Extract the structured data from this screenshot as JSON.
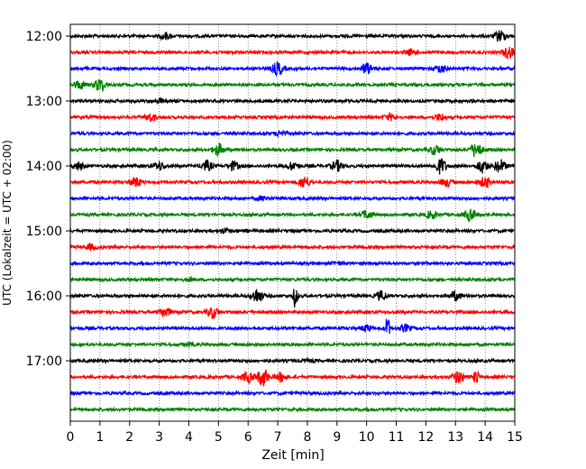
{
  "chart_data": {
    "type": "line",
    "title": "",
    "xlabel": "Zeit  [min]",
    "ylabel": "UTC (Lokalzeit = UTC + 02:00)",
    "xlim": [
      0,
      15
    ],
    "x_ticks": [
      "0",
      "1",
      "2",
      "3",
      "4",
      "5",
      "6",
      "7",
      "8",
      "9",
      "10",
      "11",
      "12",
      "13",
      "14",
      "15"
    ],
    "y_ticks": [
      {
        "label": "12:00",
        "trace_index": 0
      },
      {
        "label": "13:00",
        "trace_index": 4
      },
      {
        "label": "14:00",
        "trace_index": 8
      },
      {
        "label": "15:00",
        "trace_index": 12
      },
      {
        "label": "16:00",
        "trace_index": 16
      },
      {
        "label": "17:00",
        "trace_index": 20
      }
    ],
    "vertical_grid": true,
    "trace_interval_minutes": 15,
    "colors": [
      "#000000",
      "#ff0000",
      "#0000ff",
      "#008000"
    ],
    "traces": [
      {
        "start": "12:00",
        "color": "#000000",
        "events": [
          {
            "t": 3.2,
            "amp": 0.25
          },
          {
            "t": 14.5,
            "amp": 0.45
          }
        ]
      },
      {
        "start": "12:15",
        "color": "#ff0000",
        "events": [
          {
            "t": 14.8,
            "amp": 0.45
          },
          {
            "t": 11.5,
            "amp": 0.2
          }
        ]
      },
      {
        "start": "12:30",
        "color": "#0000ff",
        "events": [
          {
            "t": 7.0,
            "amp": 0.5
          },
          {
            "t": 10.0,
            "amp": 0.4
          },
          {
            "t": 12.5,
            "amp": 0.3
          }
        ]
      },
      {
        "start": "12:45",
        "color": "#008000",
        "events": [
          {
            "t": 1.0,
            "amp": 0.5
          },
          {
            "t": 0.3,
            "amp": 0.3
          }
        ]
      },
      {
        "start": "13:00",
        "color": "#000000",
        "events": [
          {
            "t": 3.0,
            "amp": 0.15
          }
        ]
      },
      {
        "start": "13:15",
        "color": "#ff0000",
        "events": [
          {
            "t": 2.7,
            "amp": 0.3
          },
          {
            "t": 10.8,
            "amp": 0.25
          },
          {
            "t": 12.5,
            "amp": 0.25
          }
        ]
      },
      {
        "start": "13:30",
        "color": "#0000ff",
        "events": [
          {
            "t": 7.1,
            "amp": 0.2
          }
        ]
      },
      {
        "start": "13:45",
        "color": "#008000",
        "events": [
          {
            "t": 5.0,
            "amp": 0.45
          },
          {
            "t": 13.7,
            "amp": 0.6
          },
          {
            "t": 12.3,
            "amp": 0.35
          }
        ]
      },
      {
        "start": "14:00",
        "color": "#000000",
        "events": [
          {
            "t": 0.3,
            "amp": 0.3
          },
          {
            "t": 3.0,
            "amp": 0.3
          },
          {
            "t": 4.6,
            "amp": 0.4
          },
          {
            "t": 5.5,
            "amp": 0.35
          },
          {
            "t": 7.5,
            "amp": 0.3
          },
          {
            "t": 9.0,
            "amp": 0.4
          },
          {
            "t": 12.5,
            "amp": 0.6
          },
          {
            "t": 13.9,
            "amp": 0.5
          },
          {
            "t": 14.5,
            "amp": 0.5
          }
        ]
      },
      {
        "start": "14:15",
        "color": "#ff0000",
        "events": [
          {
            "t": 2.2,
            "amp": 0.35
          },
          {
            "t": 7.9,
            "amp": 0.45
          },
          {
            "t": 12.7,
            "amp": 0.3
          },
          {
            "t": 14.0,
            "amp": 0.4
          }
        ]
      },
      {
        "start": "14:30",
        "color": "#0000ff",
        "events": [
          {
            "t": 6.5,
            "amp": 0.15
          }
        ]
      },
      {
        "start": "14:45",
        "color": "#008000",
        "events": [
          {
            "t": 13.5,
            "amp": 0.45
          },
          {
            "t": 10.0,
            "amp": 0.3
          },
          {
            "t": 12.2,
            "amp": 0.3
          }
        ]
      },
      {
        "start": "15:00",
        "color": "#000000",
        "events": [
          {
            "t": 5.2,
            "amp": 0.15
          }
        ]
      },
      {
        "start": "15:15",
        "color": "#ff0000",
        "events": [
          {
            "t": 0.7,
            "amp": 0.2
          }
        ]
      },
      {
        "start": "15:30",
        "color": "#0000ff",
        "events": [
          {
            "t": 9.0,
            "amp": 0.1
          }
        ]
      },
      {
        "start": "15:45",
        "color": "#008000",
        "events": [
          {
            "t": 4.0,
            "amp": 0.1
          }
        ]
      },
      {
        "start": "16:00",
        "color": "#000000",
        "events": [
          {
            "t": 6.3,
            "amp": 0.55
          },
          {
            "t": 7.6,
            "amp": 1.0
          },
          {
            "t": 10.5,
            "amp": 0.35
          },
          {
            "t": 13.0,
            "amp": 0.35
          }
        ]
      },
      {
        "start": "16:15",
        "color": "#ff0000",
        "events": [
          {
            "t": 3.2,
            "amp": 0.35
          },
          {
            "t": 4.8,
            "amp": 0.45
          }
        ]
      },
      {
        "start": "16:30",
        "color": "#0000ff",
        "events": [
          {
            "t": 10.7,
            "amp": 1.0
          },
          {
            "t": 10.0,
            "amp": 0.25
          },
          {
            "t": 11.3,
            "amp": 0.25
          }
        ]
      },
      {
        "start": "16:45",
        "color": "#008000",
        "events": [
          {
            "t": 4.0,
            "amp": 0.1
          }
        ]
      },
      {
        "start": "17:00",
        "color": "#000000",
        "events": [
          {
            "t": 8.0,
            "amp": 0.1
          }
        ]
      },
      {
        "start": "17:15",
        "color": "#ff0000",
        "events": [
          {
            "t": 6.0,
            "amp": 0.4
          },
          {
            "t": 6.5,
            "amp": 0.7
          },
          {
            "t": 7.1,
            "amp": 0.35
          },
          {
            "t": 13.1,
            "amp": 0.5
          },
          {
            "t": 13.7,
            "amp": 0.8
          }
        ]
      },
      {
        "start": "17:30",
        "color": "#0000ff",
        "events": []
      },
      {
        "start": "17:45",
        "color": "#008000",
        "events": []
      }
    ]
  }
}
